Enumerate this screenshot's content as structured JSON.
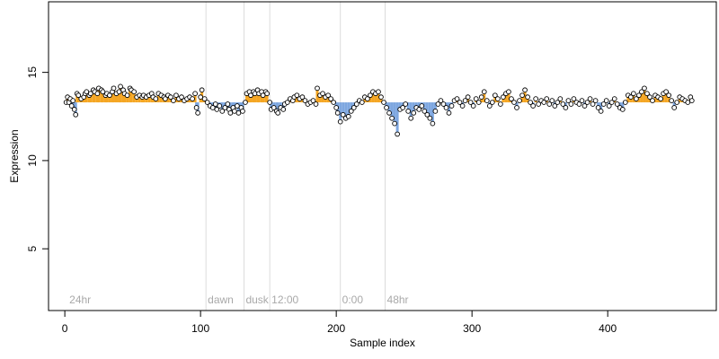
{
  "colors": {
    "background": "#ffffff",
    "axis": "#000000",
    "guide_line": "#dcdcdc",
    "annotation_text": "#a9a9a9",
    "point_stroke": "#000000",
    "point_fill": "#ffffff",
    "bar_high": "#f5a623",
    "bar_low": "#7ea7e0"
  },
  "chart_data": {
    "type": "scatter",
    "title": "",
    "xlabel": "Sample index",
    "ylabel": "Expression",
    "xlim": [
      -12,
      480
    ],
    "ylim": [
      1.5,
      19
    ],
    "x_ticks": [
      0,
      100,
      200,
      300,
      400
    ],
    "y_ticks": [
      5,
      10,
      15
    ],
    "baseline": 13.3,
    "grid": false,
    "legend": "none",
    "annotations": [
      {
        "x": 2,
        "label": "24hr",
        "line": false
      },
      {
        "x": 104,
        "label": "dawn",
        "line": true
      },
      {
        "x": 132,
        "label": "dusk",
        "line": true
      },
      {
        "x": 151,
        "label": "12:00",
        "line": true
      },
      {
        "x": 203,
        "label": "0:00",
        "line": true
      },
      {
        "x": 236,
        "label": "48hr",
        "line": true
      }
    ],
    "series": [
      {
        "values": [
          [
            1,
            13.3
          ],
          [
            2,
            13.6
          ],
          [
            3,
            13.3
          ],
          [
            4,
            13.5
          ],
          [
            5,
            13.1
          ],
          [
            6,
            13.4
          ],
          [
            7,
            12.9
          ],
          [
            8,
            12.6
          ],
          [
            9,
            13.8
          ],
          [
            10,
            13.7
          ],
          [
            12,
            13.5
          ],
          [
            14,
            13.6
          ],
          [
            15,
            13.8
          ],
          [
            16,
            13.9
          ],
          [
            18,
            13.7
          ],
          [
            19,
            13.8
          ],
          [
            21,
            14.0
          ],
          [
            22,
            13.9
          ],
          [
            24,
            13.8
          ],
          [
            25,
            14.1
          ],
          [
            27,
            14.0
          ],
          [
            28,
            13.9
          ],
          [
            30,
            13.7
          ],
          [
            31,
            13.8
          ],
          [
            33,
            13.7
          ],
          [
            35,
            13.9
          ],
          [
            36,
            14.1
          ],
          [
            38,
            13.8
          ],
          [
            40,
            13.9
          ],
          [
            41,
            14.2
          ],
          [
            43,
            14.0
          ],
          [
            44,
            13.8
          ],
          [
            46,
            13.7
          ],
          [
            48,
            14.1
          ],
          [
            49,
            14.0
          ],
          [
            51,
            13.9
          ],
          [
            53,
            13.6
          ],
          [
            55,
            13.7
          ],
          [
            57,
            13.6
          ],
          [
            58,
            13.7
          ],
          [
            60,
            13.6
          ],
          [
            62,
            13.7
          ],
          [
            64,
            13.8
          ],
          [
            65,
            13.6
          ],
          [
            67,
            13.5
          ],
          [
            69,
            13.8
          ],
          [
            71,
            13.7
          ],
          [
            73,
            13.6
          ],
          [
            74,
            13.5
          ],
          [
            76,
            13.7
          ],
          [
            78,
            13.6
          ],
          [
            80,
            13.4
          ],
          [
            82,
            13.7
          ],
          [
            84,
            13.5
          ],
          [
            86,
            13.6
          ],
          [
            88,
            13.4
          ],
          [
            90,
            13.5
          ],
          [
            92,
            13.6
          ],
          [
            94,
            13.5
          ],
          [
            96,
            13.8
          ],
          [
            97,
            13.0
          ],
          [
            98,
            12.7
          ],
          [
            100,
            13.6
          ],
          [
            101,
            14.0
          ],
          [
            103,
            13.5
          ],
          [
            105,
            13.3
          ],
          [
            107,
            13.1
          ],
          [
            109,
            13.0
          ],
          [
            111,
            13.2
          ],
          [
            112,
            12.9
          ],
          [
            114,
            13.1
          ],
          [
            116,
            12.8
          ],
          [
            118,
            13.0
          ],
          [
            120,
            13.2
          ],
          [
            121,
            12.9
          ],
          [
            122,
            12.7
          ],
          [
            124,
            13.0
          ],
          [
            125,
            12.8
          ],
          [
            127,
            13.1
          ],
          [
            128,
            12.7
          ],
          [
            130,
            13.0
          ],
          [
            131,
            12.8
          ],
          [
            133,
            13.3
          ],
          [
            134,
            13.8
          ],
          [
            136,
            13.9
          ],
          [
            137,
            13.7
          ],
          [
            139,
            13.9
          ],
          [
            140,
            13.8
          ],
          [
            142,
            14.0
          ],
          [
            143,
            13.8
          ],
          [
            145,
            13.9
          ],
          [
            146,
            13.7
          ],
          [
            148,
            13.9
          ],
          [
            149,
            13.8
          ],
          [
            151,
            13.3
          ],
          [
            152,
            12.9
          ],
          [
            154,
            13.0
          ],
          [
            156,
            12.8
          ],
          [
            157,
            12.7
          ],
          [
            159,
            13.0
          ],
          [
            161,
            12.9
          ],
          [
            162,
            13.2
          ],
          [
            164,
            13.3
          ],
          [
            166,
            13.5
          ],
          [
            168,
            13.4
          ],
          [
            169,
            13.6
          ],
          [
            171,
            13.7
          ],
          [
            173,
            13.5
          ],
          [
            175,
            13.6
          ],
          [
            177,
            13.4
          ],
          [
            179,
            13.2
          ],
          [
            181,
            13.3
          ],
          [
            183,
            13.4
          ],
          [
            185,
            13.2
          ],
          [
            186,
            14.1
          ],
          [
            188,
            13.7
          ],
          [
            190,
            13.8
          ],
          [
            192,
            13.6
          ],
          [
            194,
            13.7
          ],
          [
            196,
            13.5
          ],
          [
            198,
            13.3
          ],
          [
            200,
            13.0
          ],
          [
            201,
            12.7
          ],
          [
            203,
            12.2
          ],
          [
            205,
            12.6
          ],
          [
            207,
            12.4
          ],
          [
            209,
            12.5
          ],
          [
            211,
            12.8
          ],
          [
            213,
            13.0
          ],
          [
            215,
            13.2
          ],
          [
            217,
            13.4
          ],
          [
            219,
            13.3
          ],
          [
            221,
            13.6
          ],
          [
            223,
            13.5
          ],
          [
            225,
            13.7
          ],
          [
            227,
            13.9
          ],
          [
            229,
            13.8
          ],
          [
            231,
            13.9
          ],
          [
            233,
            13.6
          ],
          [
            235,
            13.3
          ],
          [
            237,
            13.0
          ],
          [
            239,
            12.7
          ],
          [
            241,
            12.4
          ],
          [
            243,
            12.1
          ],
          [
            245,
            11.5
          ],
          [
            247,
            12.9
          ],
          [
            249,
            13.0
          ],
          [
            251,
            13.2
          ],
          [
            253,
            12.8
          ],
          [
            255,
            12.4
          ],
          [
            257,
            12.7
          ],
          [
            259,
            13.0
          ],
          [
            261,
            12.9
          ],
          [
            263,
            13.1
          ],
          [
            265,
            12.8
          ],
          [
            267,
            12.6
          ],
          [
            269,
            12.4
          ],
          [
            271,
            12.1
          ],
          [
            273,
            12.8
          ],
          [
            275,
            13.2
          ],
          [
            277,
            13.4
          ],
          [
            279,
            13.2
          ],
          [
            281,
            13.0
          ],
          [
            283,
            12.7
          ],
          [
            285,
            13.1
          ],
          [
            287,
            13.4
          ],
          [
            289,
            13.5
          ],
          [
            291,
            13.3
          ],
          [
            293,
            13.1
          ],
          [
            295,
            13.4
          ],
          [
            297,
            13.6
          ],
          [
            299,
            13.3
          ],
          [
            301,
            13.1
          ],
          [
            303,
            13.5
          ],
          [
            305,
            13.3
          ],
          [
            307,
            13.6
          ],
          [
            309,
            13.9
          ],
          [
            311,
            13.4
          ],
          [
            313,
            13.1
          ],
          [
            315,
            13.3
          ],
          [
            317,
            13.7
          ],
          [
            319,
            13.5
          ],
          [
            321,
            13.2
          ],
          [
            323,
            13.6
          ],
          [
            325,
            13.8
          ],
          [
            327,
            13.9
          ],
          [
            329,
            13.5
          ],
          [
            331,
            13.3
          ],
          [
            333,
            13.0
          ],
          [
            335,
            13.4
          ],
          [
            337,
            13.7
          ],
          [
            339,
            14.0
          ],
          [
            341,
            13.6
          ],
          [
            343,
            13.3
          ],
          [
            345,
            13.1
          ],
          [
            347,
            13.5
          ],
          [
            349,
            13.2
          ],
          [
            351,
            13.4
          ],
          [
            353,
            13.3
          ],
          [
            355,
            13.5
          ],
          [
            357,
            13.2
          ],
          [
            359,
            13.4
          ],
          [
            361,
            13.1
          ],
          [
            363,
            13.3
          ],
          [
            365,
            13.5
          ],
          [
            367,
            13.2
          ],
          [
            369,
            13.0
          ],
          [
            371,
            13.4
          ],
          [
            373,
            13.2
          ],
          [
            375,
            13.5
          ],
          [
            377,
            13.3
          ],
          [
            379,
            13.2
          ],
          [
            381,
            13.4
          ],
          [
            383,
            13.1
          ],
          [
            385,
            13.3
          ],
          [
            387,
            13.5
          ],
          [
            389,
            13.2
          ],
          [
            391,
            13.4
          ],
          [
            393,
            13.0
          ],
          [
            395,
            12.8
          ],
          [
            397,
            13.2
          ],
          [
            399,
            13.4
          ],
          [
            401,
            13.1
          ],
          [
            403,
            13.3
          ],
          [
            405,
            13.5
          ],
          [
            407,
            13.2
          ],
          [
            409,
            13.0
          ],
          [
            411,
            12.9
          ],
          [
            413,
            13.3
          ],
          [
            415,
            13.7
          ],
          [
            417,
            13.6
          ],
          [
            419,
            13.8
          ],
          [
            421,
            13.5
          ],
          [
            423,
            13.7
          ],
          [
            425,
            13.9
          ],
          [
            427,
            14.1
          ],
          [
            429,
            13.8
          ],
          [
            431,
            13.6
          ],
          [
            433,
            13.4
          ],
          [
            435,
            13.7
          ],
          [
            437,
            13.6
          ],
          [
            439,
            13.5
          ],
          [
            441,
            13.8
          ],
          [
            443,
            13.9
          ],
          [
            445,
            13.7
          ],
          [
            447,
            13.4
          ],
          [
            449,
            13.0
          ],
          [
            451,
            13.3
          ],
          [
            453,
            13.6
          ],
          [
            455,
            13.5
          ],
          [
            457,
            13.4
          ],
          [
            459,
            13.3
          ],
          [
            461,
            13.6
          ],
          [
            462,
            13.4
          ]
        ]
      }
    ]
  }
}
